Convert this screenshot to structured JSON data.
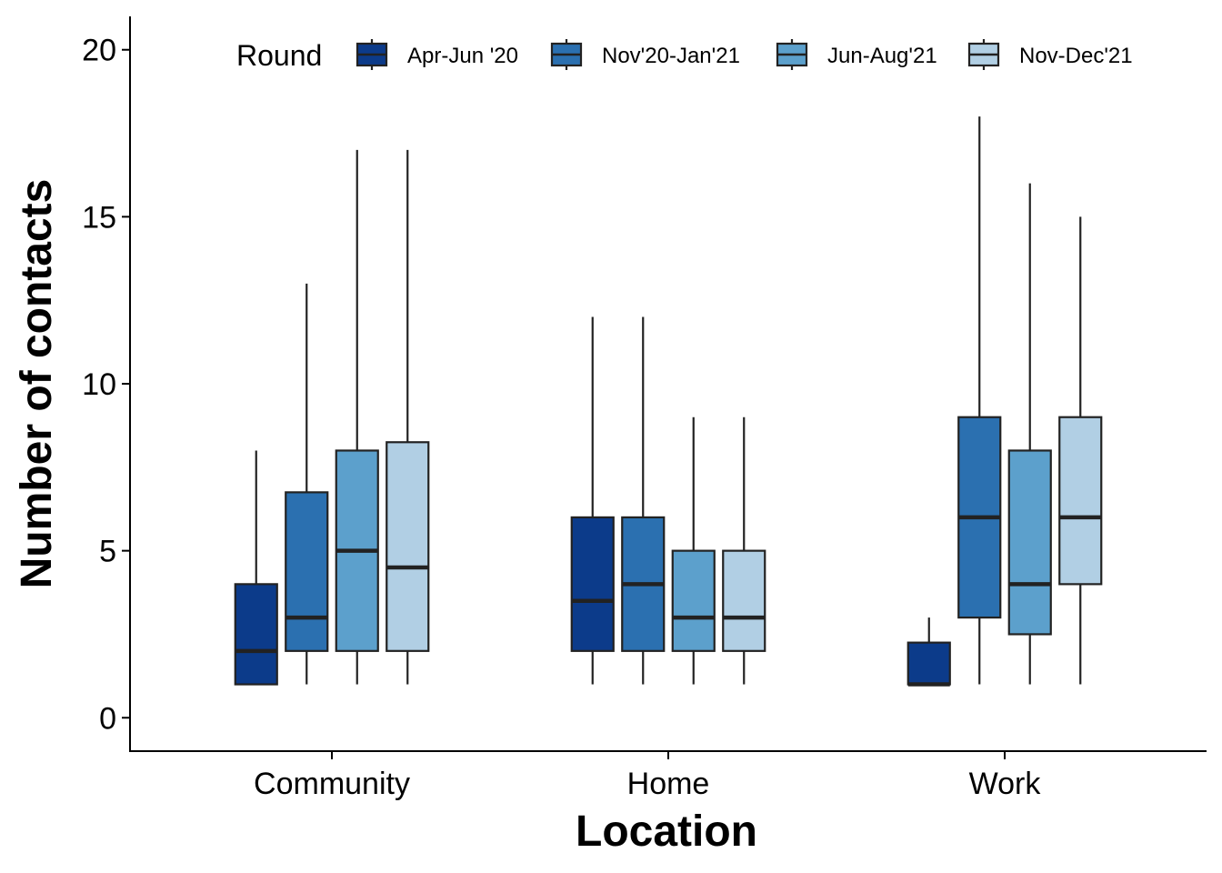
{
  "chart_data": {
    "type": "boxplot",
    "title": "",
    "xlabel": "Location",
    "ylabel": "Number of contacts",
    "ylim": [
      -1,
      21
    ],
    "yticks": [
      0,
      5,
      10,
      15,
      20
    ],
    "grid": false,
    "legend": {
      "title": "Round",
      "position": "top"
    },
    "categories": [
      "Community",
      "Home",
      "Work"
    ],
    "series": [
      {
        "name": "Apr-Jun '20",
        "color": "#0c3b8a",
        "boxes": [
          {
            "min": 1,
            "q1": 1,
            "median": 2,
            "q3": 4,
            "max": 8
          },
          {
            "min": 1,
            "q1": 2,
            "median": 3.5,
            "q3": 6,
            "max": 12
          },
          {
            "min": 1,
            "q1": 1,
            "median": 1,
            "q3": 2.25,
            "max": 3
          }
        ]
      },
      {
        "name": "Nov'20-Jan'21",
        "color": "#2b70b0",
        "boxes": [
          {
            "min": 1,
            "q1": 2,
            "median": 3,
            "q3": 6.75,
            "max": 13
          },
          {
            "min": 1,
            "q1": 2,
            "median": 4,
            "q3": 6,
            "max": 12
          },
          {
            "min": 1,
            "q1": 3,
            "median": 6,
            "q3": 9,
            "max": 18
          }
        ]
      },
      {
        "name": "Jun-Aug'21",
        "color": "#5ca0cc",
        "boxes": [
          {
            "min": 1,
            "q1": 2,
            "median": 5,
            "q3": 8,
            "max": 17
          },
          {
            "min": 1,
            "q1": 2,
            "median": 3,
            "q3": 5,
            "max": 9
          },
          {
            "min": 1,
            "q1": 2.5,
            "median": 4,
            "q3": 8,
            "max": 16
          }
        ]
      },
      {
        "name": "Nov-Dec'21",
        "color": "#b1cfe4",
        "boxes": [
          {
            "min": 1,
            "q1": 2,
            "median": 4.5,
            "q3": 8.25,
            "max": 17
          },
          {
            "min": 1,
            "q1": 2,
            "median": 3,
            "q3": 5,
            "max": 9
          },
          {
            "min": 1,
            "q1": 4,
            "median": 6,
            "q3": 9,
            "max": 15
          }
        ]
      }
    ]
  }
}
